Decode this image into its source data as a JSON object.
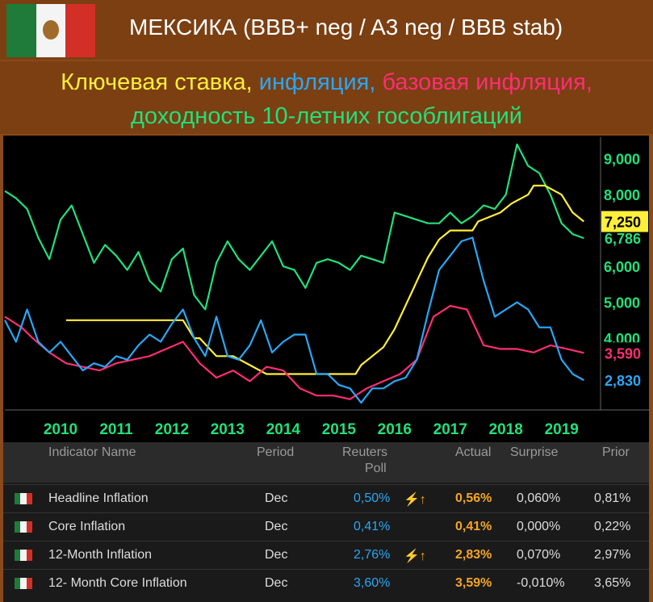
{
  "header": {
    "title": "МЕКСИКА (BBB+ neg / A3 neg / BBB stab)",
    "subtitle_parts": [
      "Ключевая ставка, ",
      "инфляция, ",
      "базовая инфляция,"
    ],
    "subtitle_line2": "доходность 10-летних гособлигаций",
    "colors": {
      "key_rate": "#ffef3a",
      "inflation": "#2aa7f5",
      "core": "#ff2d74",
      "yield10": "#22e07a"
    }
  },
  "chart_data": {
    "type": "line",
    "xlim": [
      2009.5,
      2020.2
    ],
    "ylim": [
      2.0,
      9.6
    ],
    "x_ticks": [
      "2010",
      "2011",
      "2012",
      "2013",
      "2014",
      "2015",
      "2016",
      "2017",
      "2018",
      "2019"
    ],
    "y_ticks": [
      "9,000",
      "8,000",
      "7,000",
      "6,000",
      "5,000",
      "4,000"
    ],
    "last_values": {
      "yield10": "6,786",
      "key_rate": "7,250",
      "core": "3,590",
      "inflation": "2,830"
    },
    "series": [
      {
        "key": "yield10",
        "color": "#22e07a",
        "x": [
          2009.5,
          2009.7,
          2009.9,
          2010.1,
          2010.3,
          2010.5,
          2010.7,
          2010.9,
          2011.1,
          2011.3,
          2011.5,
          2011.7,
          2011.9,
          2012.1,
          2012.3,
          2012.5,
          2012.7,
          2012.9,
          2013.1,
          2013.3,
          2013.5,
          2013.7,
          2013.9,
          2014.1,
          2014.3,
          2014.5,
          2014.7,
          2014.9,
          2015.1,
          2015.3,
          2015.5,
          2015.7,
          2015.9,
          2016.1,
          2016.3,
          2016.5,
          2016.7,
          2016.9,
          2017.1,
          2017.3,
          2017.5,
          2017.7,
          2017.9,
          2018.1,
          2018.3,
          2018.5,
          2018.7,
          2018.9,
          2019.1,
          2019.3,
          2019.5,
          2019.7,
          2019.9
        ],
        "y": [
          8.1,
          7.9,
          7.6,
          6.8,
          6.2,
          7.3,
          7.7,
          6.9,
          6.1,
          6.6,
          6.3,
          5.9,
          6.4,
          5.6,
          5.3,
          6.2,
          6.5,
          5.2,
          4.8,
          6.1,
          6.7,
          6.2,
          5.9,
          6.3,
          6.7,
          6.0,
          5.9,
          5.4,
          6.1,
          6.2,
          6.1,
          5.9,
          6.3,
          6.2,
          6.1,
          7.5,
          7.4,
          7.3,
          7.2,
          7.2,
          7.5,
          7.2,
          7.4,
          7.7,
          7.6,
          8.0,
          9.4,
          8.8,
          8.6,
          8.0,
          7.2,
          6.9,
          6.786
        ]
      },
      {
        "key": "key_rate",
        "color": "#ffef3a",
        "x": [
          2010.6,
          2012.3,
          2012.7,
          2012.9,
          2013.0,
          2013.3,
          2013.6,
          2013.9,
          2014.2,
          2014.4,
          2015.0,
          2015.8,
          2015.9,
          2016.1,
          2016.3,
          2016.5,
          2016.8,
          2016.95,
          2017.1,
          2017.3,
          2017.5,
          2017.9,
          2018.0,
          2018.4,
          2018.6,
          2018.9,
          2019.0,
          2019.2,
          2019.5,
          2019.7,
          2019.9
        ],
        "y": [
          4.5,
          4.5,
          4.5,
          4.0,
          4.0,
          3.5,
          3.5,
          3.25,
          3.0,
          3.0,
          3.0,
          3.0,
          3.25,
          3.5,
          3.75,
          4.25,
          5.25,
          5.75,
          6.25,
          6.75,
          7.0,
          7.0,
          7.25,
          7.5,
          7.75,
          8.0,
          8.25,
          8.25,
          8.0,
          7.5,
          7.25
        ]
      },
      {
        "key": "core",
        "color": "#ff2d74",
        "x": [
          2009.5,
          2009.8,
          2010.0,
          2010.3,
          2010.6,
          2010.9,
          2011.2,
          2011.5,
          2011.8,
          2012.1,
          2012.4,
          2012.7,
          2013.0,
          2013.3,
          2013.6,
          2013.9,
          2014.2,
          2014.5,
          2014.8,
          2015.1,
          2015.4,
          2015.7,
          2016.0,
          2016.3,
          2016.6,
          2016.9,
          2017.2,
          2017.5,
          2017.8,
          2018.1,
          2018.4,
          2018.7,
          2019.0,
          2019.3,
          2019.6,
          2019.9
        ],
        "y": [
          4.6,
          4.3,
          4.0,
          3.6,
          3.3,
          3.2,
          3.1,
          3.3,
          3.4,
          3.5,
          3.7,
          3.9,
          3.3,
          2.9,
          3.1,
          2.8,
          3.2,
          3.1,
          2.6,
          2.4,
          2.4,
          2.3,
          2.6,
          2.8,
          3.0,
          3.4,
          4.6,
          4.9,
          4.8,
          3.8,
          3.7,
          3.7,
          3.6,
          3.8,
          3.7,
          3.59
        ]
      },
      {
        "key": "inflation",
        "color": "#2aa7f5",
        "x": [
          2009.5,
          2009.7,
          2009.9,
          2010.1,
          2010.3,
          2010.5,
          2010.7,
          2010.9,
          2011.1,
          2011.3,
          2011.5,
          2011.7,
          2011.9,
          2012.1,
          2012.3,
          2012.5,
          2012.7,
          2012.9,
          2013.1,
          2013.3,
          2013.5,
          2013.7,
          2013.9,
          2014.1,
          2014.3,
          2014.5,
          2014.7,
          2014.9,
          2015.1,
          2015.3,
          2015.5,
          2015.7,
          2015.9,
          2016.1,
          2016.3,
          2016.5,
          2016.7,
          2016.9,
          2017.1,
          2017.3,
          2017.5,
          2017.7,
          2017.9,
          2018.1,
          2018.3,
          2018.5,
          2018.7,
          2018.9,
          2019.1,
          2019.3,
          2019.5,
          2019.7,
          2019.9
        ],
        "y": [
          4.5,
          3.9,
          4.8,
          3.9,
          3.6,
          3.9,
          3.5,
          3.1,
          3.3,
          3.2,
          3.5,
          3.4,
          3.8,
          4.1,
          3.9,
          4.4,
          4.8,
          4.0,
          3.5,
          4.6,
          3.5,
          3.4,
          3.8,
          4.5,
          3.6,
          3.9,
          4.1,
          4.1,
          3.0,
          3.0,
          2.7,
          2.6,
          2.2,
          2.6,
          2.6,
          2.8,
          2.9,
          3.4,
          4.7,
          5.9,
          6.3,
          6.7,
          6.8,
          5.6,
          4.6,
          4.8,
          5.0,
          4.8,
          4.3,
          4.3,
          3.4,
          3.0,
          2.83
        ]
      }
    ]
  },
  "table": {
    "headers": {
      "name": "Indicator Name",
      "period": "Period",
      "poll1": "Reuters",
      "poll2": "Poll",
      "actual": "Actual",
      "surprise": "Surprise",
      "prior": "Prior"
    },
    "rows": [
      {
        "name": "Headline Inflation",
        "period": "Dec",
        "poll": "0,50%",
        "arrow": "⚡↑",
        "actual": "0,56%",
        "surprise": "0,060%",
        "prior": "0,81%"
      },
      {
        "name": "Core Inflation",
        "period": "Dec",
        "poll": "0,41%",
        "arrow": "",
        "actual": "0,41%",
        "surprise": "0,000%",
        "prior": "0,22%"
      },
      {
        "name": "12-Month Inflation",
        "period": "Dec",
        "poll": "2,76%",
        "arrow": "⚡↑",
        "actual": "2,83%",
        "surprise": "0,070%",
        "prior": "2,97%"
      },
      {
        "name": "12- Month Core Inflation",
        "period": "Dec",
        "poll": "3,60%",
        "arrow": "",
        "actual": "3,59%",
        "surprise": "-0,010%",
        "prior": "3,65%"
      }
    ]
  }
}
